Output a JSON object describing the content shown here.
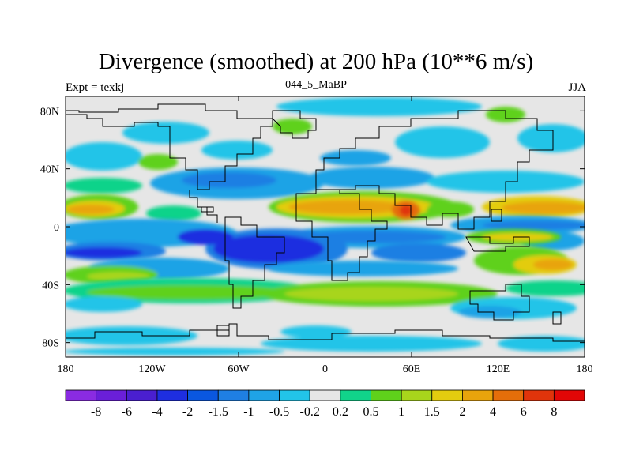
{
  "chart_data": {
    "type": "heatmap",
    "title": "Divergence (smoothed) at 200 hPa (10**6 m/s)",
    "left_label": "Expt = texkj",
    "center_label": "044_5_MaBP",
    "right_label": "JJA",
    "xlim": [
      -180,
      180
    ],
    "ylim": [
      -90,
      90
    ],
    "x_ticks": [
      {
        "value": -180,
        "label": "180"
      },
      {
        "value": -120,
        "label": "120W"
      },
      {
        "value": -60,
        "label": "60W"
      },
      {
        "value": 0,
        "label": "0"
      },
      {
        "value": 60,
        "label": "60E"
      },
      {
        "value": 120,
        "label": "120E"
      },
      {
        "value": 180,
        "label": "180"
      }
    ],
    "y_ticks": [
      {
        "value": 80,
        "label": "80N"
      },
      {
        "value": 40,
        "label": "40N"
      },
      {
        "value": 0,
        "label": "0"
      },
      {
        "value": -40,
        "label": "40S"
      },
      {
        "value": -80,
        "label": "80S"
      }
    ],
    "colorbar": {
      "levels": [
        "-8",
        "-6",
        "-4",
        "-2",
        "-1.5",
        "-1",
        "-0.5",
        "-0.2",
        "0.2",
        "0.5",
        "1",
        "1.5",
        "2",
        "4",
        "6",
        "8"
      ],
      "colors": [
        "#8a2be2",
        "#6a1fd9",
        "#4a1fd0",
        "#1e2ee0",
        "#0a57e0",
        "#1f7fe3",
        "#1fa3e6",
        "#22c4e8",
        "#e6e6e6",
        "#11d38a",
        "#5fd11b",
        "#a8d51c",
        "#e3cc0f",
        "#e8a40c",
        "#e46e0a",
        "#e0340b",
        "#e20606"
      ]
    },
    "features": [
      {
        "name": "equatorial-pacific-divergence",
        "lon": [
          -180,
          -130
        ],
        "lat": [
          5,
          20
        ],
        "level": "4"
      },
      {
        "name": "africa-asia-divergence-band",
        "lon": [
          -40,
          100
        ],
        "lat": [
          5,
          25
        ],
        "level": "4"
      },
      {
        "name": "india-max-divergence",
        "lon": [
          50,
          70
        ],
        "lat": [
          8,
          20
        ],
        "level": "6"
      },
      {
        "name": "west-pacific-divergence",
        "lon": [
          110,
          180
        ],
        "lat": [
          5,
          20
        ],
        "level": "2"
      },
      {
        "name": "south-pacific-convergence-core",
        "lon": [
          -180,
          -110
        ],
        "lat": [
          -25,
          -10
        ],
        "level": "-2"
      },
      {
        "name": "atlantic-convergence-core",
        "lon": [
          -70,
          -10
        ],
        "lat": [
          -30,
          0
        ],
        "level": "-2"
      },
      {
        "name": "indian-ocean-convergence",
        "lon": [
          0,
          100
        ],
        "lat": [
          -20,
          -5
        ],
        "level": "-1"
      },
      {
        "name": "southern-divergence-band",
        "lon": [
          -180,
          180
        ],
        "lat": [
          -45,
          -30
        ],
        "level": "1"
      }
    ]
  }
}
